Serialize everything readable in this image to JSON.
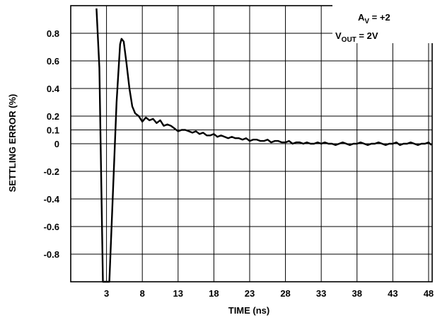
{
  "chart_data": {
    "type": "line",
    "title": "",
    "xlabel": "TIME (ns)",
    "ylabel": "SETTLING ERROR (%)",
    "xlim": [
      -2,
      48.5
    ],
    "ylim": [
      -1.0,
      1.0
    ],
    "x_ticks": [
      "3",
      "8",
      "13",
      "18",
      "23",
      "28",
      "33",
      "38",
      "43",
      "48"
    ],
    "y_ticks": [
      "0.8",
      "0.6",
      "0.4",
      "0.2",
      "0.1",
      "0",
      "-0.2",
      "-0.4",
      "-0.6",
      "-0.8"
    ],
    "grid": true,
    "annotation": {
      "line1_main": "A",
      "line1_sub": "V",
      "line1_rest": " = +2",
      "line2_main": "V",
      "line2_sub": "OUT",
      "line2_rest": " = 2V"
    },
    "series": [
      {
        "x": [
          1.6,
          2.0,
          2.5,
          3.4,
          3.9,
          4.4,
          4.9,
          5.1,
          5.4,
          5.8,
          6.2,
          6.6,
          7.0,
          7.5,
          8.0,
          8.5,
          9.0,
          9.5,
          10.0,
          10.5,
          11.0,
          11.5,
          12.0,
          12.5,
          13.0,
          13.5,
          14.0,
          14.5,
          15.0,
          15.5,
          16.0,
          16.5,
          17.0,
          17.5,
          18.0,
          18.5,
          19.0,
          19.5,
          20.0,
          20.5,
          21.0,
          21.5,
          22.0,
          22.5,
          23.0,
          23.5,
          24.0,
          24.5,
          25.0,
          25.5,
          26.0,
          26.5,
          27.0,
          27.5,
          28.0,
          28.5,
          29.0,
          29.5,
          30.0,
          30.5,
          31.0,
          31.5,
          32.0,
          32.5,
          33.0,
          33.5,
          34.0,
          34.5,
          35.0,
          35.5,
          36.0,
          36.5,
          37.0,
          37.5,
          38.0,
          38.5,
          39.0,
          39.5,
          40.0,
          40.5,
          41.0,
          41.5,
          42.0,
          42.5,
          43.0,
          43.5,
          44.0,
          44.5,
          45.0,
          45.5,
          46.0,
          46.5,
          47.0,
          47.5,
          48.0,
          48.5
        ],
        "y": [
          0.98,
          0.55,
          -1.0,
          -1.0,
          -0.35,
          0.3,
          0.72,
          0.76,
          0.74,
          0.58,
          0.4,
          0.27,
          0.22,
          0.2,
          0.16,
          0.19,
          0.17,
          0.18,
          0.15,
          0.17,
          0.13,
          0.14,
          0.13,
          0.11,
          0.09,
          0.1,
          0.1,
          0.09,
          0.08,
          0.09,
          0.07,
          0.08,
          0.06,
          0.06,
          0.07,
          0.05,
          0.06,
          0.05,
          0.04,
          0.05,
          0.04,
          0.04,
          0.03,
          0.04,
          0.02,
          0.03,
          0.03,
          0.02,
          0.02,
          0.03,
          0.01,
          0.02,
          0.02,
          0.01,
          0.01,
          0.02,
          0.0,
          0.01,
          0.01,
          0.0,
          0.01,
          0.0,
          0.0,
          0.01,
          0.0,
          0.01,
          0.0,
          0.0,
          -0.01,
          0.0,
          0.01,
          0.0,
          -0.01,
          0.0,
          0.0,
          0.01,
          0.0,
          -0.01,
          0.0,
          0.0,
          0.01,
          0.0,
          -0.01,
          0.0,
          0.0,
          0.01,
          -0.01,
          0.0,
          0.0,
          0.01,
          0.0,
          -0.01,
          0.0,
          0.0,
          0.01,
          -0.01
        ]
      }
    ]
  }
}
